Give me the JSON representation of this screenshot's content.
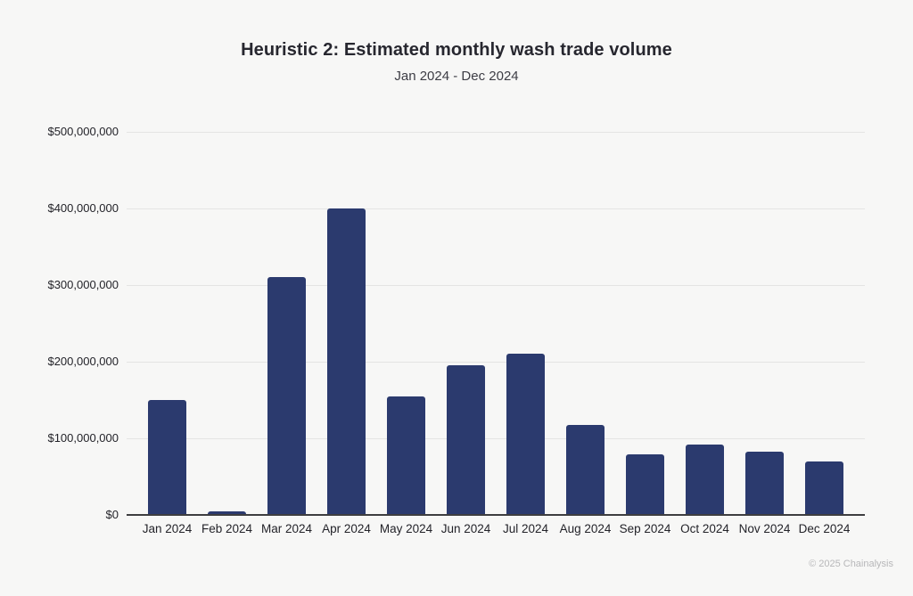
{
  "chart_data": {
    "type": "bar",
    "title": "Heuristic 2: Estimated monthly wash trade volume",
    "subtitle": "Jan 2024 - Dec 2024",
    "categories": [
      "Jan 2024",
      "Feb 2024",
      "Mar 2024",
      "Apr 2024",
      "May 2024",
      "Jun 2024",
      "Jul 2024",
      "Aug 2024",
      "Sep 2024",
      "Oct 2024",
      "Nov 2024",
      "Dec 2024"
    ],
    "values": [
      150000000,
      5000000,
      310000000,
      400000000,
      155000000,
      195000000,
      210000000,
      118000000,
      79000000,
      92000000,
      82000000,
      70000000
    ],
    "xlabel": "",
    "ylabel": "",
    "ylim": [
      0,
      500000000
    ],
    "y_ticks": [
      {
        "value": 0,
        "label": "$0"
      },
      {
        "value": 100000000,
        "label": "$100,000,000"
      },
      {
        "value": 200000000,
        "label": "$200,000,000"
      },
      {
        "value": 300000000,
        "label": "$300,000,000"
      },
      {
        "value": 400000000,
        "label": "$400,000,000"
      },
      {
        "value": 500000000,
        "label": "$500,000,000"
      }
    ],
    "grid": true,
    "legend": false,
    "bar_color": "#2b3a6e"
  },
  "footer": {
    "copyright": "© 2025 Chainalysis"
  },
  "colors": {
    "background": "#f7f7f6",
    "bar": "#2b3a6e",
    "title_text": "#27272f",
    "subtitle_text": "#3d3d45",
    "axis_text": "#232329",
    "gridline": "#e4e4e3",
    "axis_line": "#3e3e40",
    "footer_text": "#b7b7b9"
  }
}
